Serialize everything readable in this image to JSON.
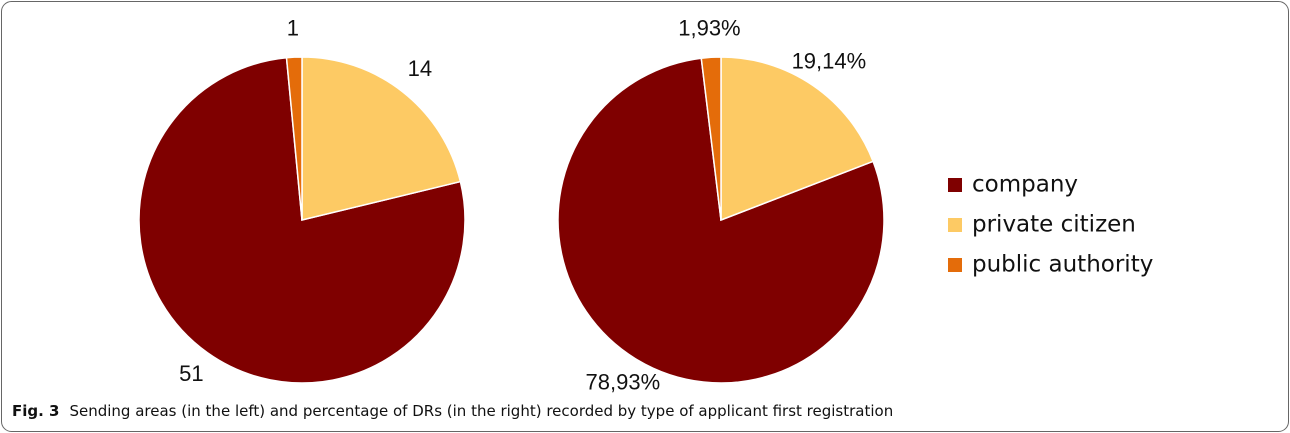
{
  "chart_data": {
    "type": "pie",
    "categories": [
      "company",
      "private citizen",
      "public authority"
    ],
    "colors": [
      "#7f0000",
      "#fdca64",
      "#e46c0a"
    ],
    "series": [
      {
        "values": [
          51,
          14,
          1
        ]
      },
      {
        "values": [
          78.93,
          19.14,
          1.93
        ],
        "value_labels": [
          "78,93%",
          "19,14%",
          "1,93%"
        ]
      }
    ],
    "caption_label": "Fig. 3",
    "caption": "Sending areas (in the left) and percentage of DRs (in the right) recorded by type of applicant first registration"
  }
}
